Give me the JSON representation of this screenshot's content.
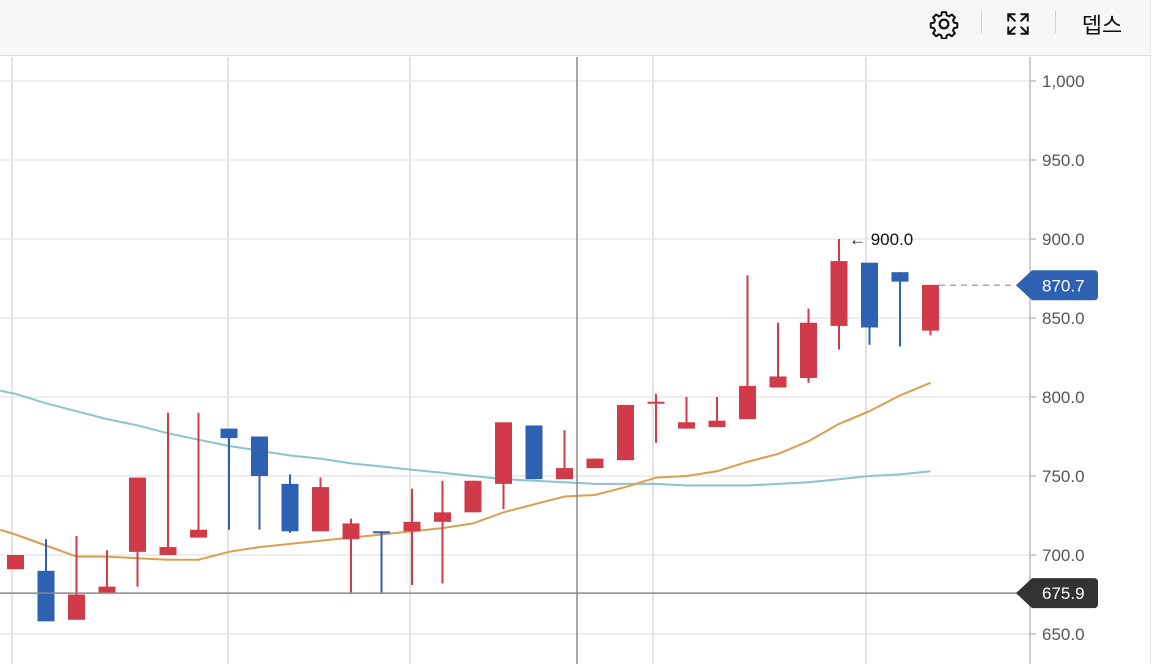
{
  "toolbar": {
    "settings_icon": "gear-icon",
    "fullscreen_icon": "expand-icon",
    "depth_label": "뎁스"
  },
  "chart_data": {
    "type": "candlestick",
    "ylim": [
      635,
      1010
    ],
    "yticks": [
      {
        "value": 650,
        "label": "650.0"
      },
      {
        "value": 700,
        "label": "700.0"
      },
      {
        "value": 750,
        "label": "750.0"
      },
      {
        "value": 800,
        "label": "800.0"
      },
      {
        "value": 850,
        "label": "850.0"
      },
      {
        "value": 900,
        "label": "900.0"
      },
      {
        "value": 950,
        "label": "950.0"
      },
      {
        "value": 1000,
        "label": "1,000"
      }
    ],
    "colors": {
      "up": "#d13a48",
      "down": "#2f61b2",
      "ma_short": "#d8a050",
      "ma_long": "#8cc4cc",
      "grid": "#e3e3e3"
    },
    "candles": [
      {
        "o": 691,
        "h": 700,
        "l": 691,
        "c": 700
      },
      {
        "o": 690,
        "h": 710,
        "l": 658,
        "c": 658
      },
      {
        "o": 659,
        "h": 712,
        "l": 659,
        "c": 675
      },
      {
        "o": 676,
        "h": 703,
        "l": 676,
        "c": 680
      },
      {
        "o": 702,
        "h": 749,
        "l": 680,
        "c": 749
      },
      {
        "o": 700,
        "h": 790,
        "l": 700,
        "c": 705
      },
      {
        "o": 711,
        "h": 790,
        "l": 711,
        "c": 716
      },
      {
        "o": 780,
        "h": 780,
        "l": 716,
        "c": 774
      },
      {
        "o": 775,
        "h": 775,
        "l": 716,
        "c": 750
      },
      {
        "o": 745,
        "h": 751,
        "l": 714,
        "c": 715
      },
      {
        "o": 715,
        "h": 749,
        "l": 715,
        "c": 743
      },
      {
        "o": 710,
        "h": 723,
        "l": 676,
        "c": 720
      },
      {
        "o": 715,
        "h": 715,
        "l": 676,
        "c": 714
      },
      {
        "o": 715,
        "h": 742,
        "l": 681,
        "c": 721
      },
      {
        "o": 721,
        "h": 747,
        "l": 682,
        "c": 727
      },
      {
        "o": 727,
        "h": 747,
        "l": 727,
        "c": 747
      },
      {
        "o": 745,
        "h": 784,
        "l": 729,
        "c": 784
      },
      {
        "o": 782,
        "h": 782,
        "l": 748,
        "c": 748
      },
      {
        "o": 748,
        "h": 779,
        "l": 748,
        "c": 755
      },
      {
        "o": 755,
        "h": 761,
        "l": 755,
        "c": 761
      },
      {
        "o": 760,
        "h": 795,
        "l": 760,
        "c": 795
      },
      {
        "o": 796,
        "h": 802,
        "l": 771,
        "c": 797
      },
      {
        "o": 780,
        "h": 800,
        "l": 780,
        "c": 784
      },
      {
        "o": 781,
        "h": 800,
        "l": 781,
        "c": 785
      },
      {
        "o": 786,
        "h": 877,
        "l": 786,
        "c": 807
      },
      {
        "o": 806,
        "h": 847,
        "l": 806,
        "c": 813
      },
      {
        "o": 812,
        "h": 856,
        "l": 809,
        "c": 847
      },
      {
        "o": 845,
        "h": 900,
        "l": 830,
        "c": 886
      },
      {
        "o": 885,
        "h": 885,
        "l": 833,
        "c": 844
      },
      {
        "o": 879,
        "h": 879,
        "l": 832,
        "c": 873
      },
      {
        "o": 842,
        "h": 871,
        "l": 839,
        "c": 871
      }
    ],
    "ma_short": [
      {
        "i": -0.5,
        "v": 716
      },
      {
        "i": 0,
        "v": 713
      },
      {
        "i": 1,
        "v": 706
      },
      {
        "i": 2,
        "v": 699
      },
      {
        "i": 3,
        "v": 699
      },
      {
        "i": 4,
        "v": 698
      },
      {
        "i": 5,
        "v": 697
      },
      {
        "i": 6,
        "v": 697
      },
      {
        "i": 7,
        "v": 702
      },
      {
        "i": 8,
        "v": 705
      },
      {
        "i": 9,
        "v": 707
      },
      {
        "i": 10,
        "v": 709
      },
      {
        "i": 11,
        "v": 711
      },
      {
        "i": 12,
        "v": 713
      },
      {
        "i": 13,
        "v": 715
      },
      {
        "i": 14,
        "v": 717
      },
      {
        "i": 15,
        "v": 720
      },
      {
        "i": 16,
        "v": 727
      },
      {
        "i": 17,
        "v": 732
      },
      {
        "i": 18,
        "v": 737
      },
      {
        "i": 19,
        "v": 738
      },
      {
        "i": 20,
        "v": 743
      },
      {
        "i": 21,
        "v": 749
      },
      {
        "i": 22,
        "v": 750
      },
      {
        "i": 23,
        "v": 753
      },
      {
        "i": 24,
        "v": 759
      },
      {
        "i": 25,
        "v": 764
      },
      {
        "i": 26,
        "v": 772
      },
      {
        "i": 27,
        "v": 783
      },
      {
        "i": 28,
        "v": 791
      },
      {
        "i": 29,
        "v": 801
      },
      {
        "i": 30,
        "v": 809
      }
    ],
    "ma_long": [
      {
        "i": -0.5,
        "v": 804
      },
      {
        "i": 0,
        "v": 802
      },
      {
        "i": 1,
        "v": 796
      },
      {
        "i": 2,
        "v": 791
      },
      {
        "i": 3,
        "v": 786
      },
      {
        "i": 4,
        "v": 782
      },
      {
        "i": 5,
        "v": 777
      },
      {
        "i": 6,
        "v": 773
      },
      {
        "i": 7,
        "v": 769
      },
      {
        "i": 8,
        "v": 766
      },
      {
        "i": 9,
        "v": 763
      },
      {
        "i": 10,
        "v": 761
      },
      {
        "i": 11,
        "v": 758
      },
      {
        "i": 12,
        "v": 756
      },
      {
        "i": 13,
        "v": 754
      },
      {
        "i": 14,
        "v": 752
      },
      {
        "i": 15,
        "v": 750
      },
      {
        "i": 16,
        "v": 748
      },
      {
        "i": 17,
        "v": 747
      },
      {
        "i": 18,
        "v": 746
      },
      {
        "i": 19,
        "v": 745
      },
      {
        "i": 20,
        "v": 745
      },
      {
        "i": 21,
        "v": 745
      },
      {
        "i": 22,
        "v": 744
      },
      {
        "i": 23,
        "v": 744
      },
      {
        "i": 24,
        "v": 744
      },
      {
        "i": 25,
        "v": 745
      },
      {
        "i": 26,
        "v": 746
      },
      {
        "i": 27,
        "v": 748
      },
      {
        "i": 28,
        "v": 750
      },
      {
        "i": 29,
        "v": 751
      },
      {
        "i": 30,
        "v": 753
      }
    ],
    "annotation": {
      "value": 900,
      "label": "← 900.0",
      "candle_index": 27
    },
    "last_price": {
      "value": 870.7,
      "label": "870.7",
      "color": "#2f61b2"
    },
    "crosshair": {
      "value": 675.9,
      "label": "675.9",
      "color": "#333333"
    }
  }
}
